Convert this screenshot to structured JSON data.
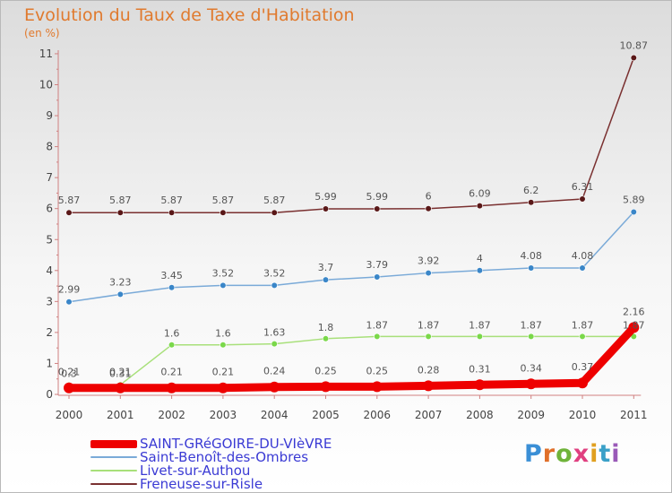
{
  "title": "Evolution du Taux de Taxe d'Habitation",
  "unit": "(en %)",
  "logo": {
    "text": "Proxiti",
    "letter_colors": [
      "#3a8fd6",
      "#e0702a",
      "#6fb33a",
      "#e04080",
      "#e0a020",
      "#3aa0c8",
      "#9a5ab8"
    ]
  },
  "chart_data": {
    "type": "line",
    "title": "Evolution du Taux de Taxe d'Habitation",
    "ylabel": "(en %)",
    "x": [
      "2000",
      "2001",
      "2002",
      "2003",
      "2004",
      "2005",
      "2006",
      "2007",
      "2008",
      "2009",
      "2010",
      "2011"
    ],
    "yticks": [
      "0",
      "1",
      "2",
      "3",
      "4",
      "5",
      "6",
      "7",
      "8",
      "9",
      "10",
      "11"
    ],
    "ylim": [
      0,
      11
    ],
    "grid": false,
    "legend_position": "bottom-left",
    "series": [
      {
        "name": "SAINT-GRéGOIRE-DU-VIèVRE",
        "color": "#ee0000",
        "marker": "#ee0000",
        "values": [
          0.21,
          0.21,
          0.21,
          0.21,
          0.24,
          0.25,
          0.25,
          0.28,
          0.31,
          0.34,
          0.37,
          2.16
        ],
        "labels": [
          "0.21",
          "0.21",
          "0.21",
          "0.21",
          "0.24",
          "0.25",
          "0.25",
          "0.28",
          "0.31",
          "0.34",
          "0.37",
          "2.16"
        ]
      },
      {
        "name": "Saint-Benoît-des-Ombres",
        "color": "#7aaad8",
        "marker": "#3a86c8",
        "values": [
          2.99,
          3.23,
          3.45,
          3.52,
          3.52,
          3.7,
          3.79,
          3.92,
          4,
          4.08,
          4.08,
          5.89
        ],
        "labels": [
          "2.99",
          "3.23",
          "3.45",
          "3.52",
          "3.52",
          "3.7",
          "3.79",
          "3.92",
          "4",
          "4.08",
          "4.08",
          "5.89"
        ]
      },
      {
        "name": "Livet-sur-Authou",
        "color": "#a8e07a",
        "marker": "#7ad84a",
        "values": [
          0.3,
          0.31,
          1.6,
          1.6,
          1.63,
          1.8,
          1.87,
          1.87,
          1.87,
          1.87,
          1.87,
          1.87
        ],
        "labels": [
          "0.3",
          "0.31",
          "1.6",
          "1.6",
          "1.63",
          "1.8",
          "1.87",
          "1.87",
          "1.87",
          "1.87",
          "1.87",
          "1.87"
        ]
      },
      {
        "name": "Freneuse-sur-Risle",
        "color": "#7a3030",
        "marker": "#5a1818",
        "values": [
          5.87,
          5.87,
          5.87,
          5.87,
          5.87,
          5.99,
          5.99,
          6,
          6.09,
          6.2,
          6.31,
          10.87
        ],
        "labels": [
          "5.87",
          "5.87",
          "5.87",
          "5.87",
          "5.87",
          "5.99",
          "5.99",
          "6",
          "6.09",
          "6.2",
          "6.31",
          "10.87"
        ]
      }
    ]
  }
}
